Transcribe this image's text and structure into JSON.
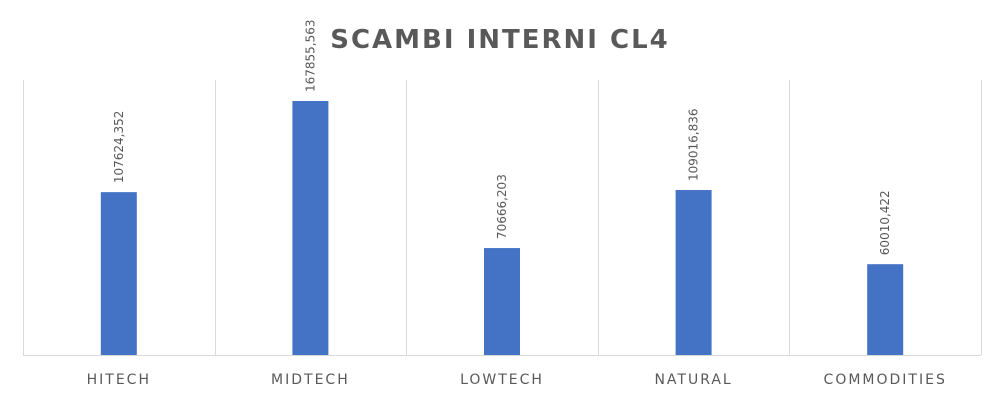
{
  "chart_data": {
    "type": "bar",
    "title": "SCAMBI INTERNI CL4",
    "categories": [
      "HITECH",
      "MIDTECH",
      "LOWTECH",
      "NATURAL",
      "COMMODITIES"
    ],
    "values": [
      107624.352,
      167855.563,
      70666.203,
      109016.836,
      60010.422
    ],
    "data_labels": [
      "107624,352",
      "167855,563",
      "70666,203",
      "109016,836",
      "60010,422"
    ],
    "xlabel": "",
    "ylabel": "",
    "ylim": [
      0,
      180000
    ],
    "grid": true,
    "legend": "none",
    "colors": {
      "bar": "#4472c4",
      "text": "#595959",
      "grid": "#d9d9d9"
    }
  }
}
